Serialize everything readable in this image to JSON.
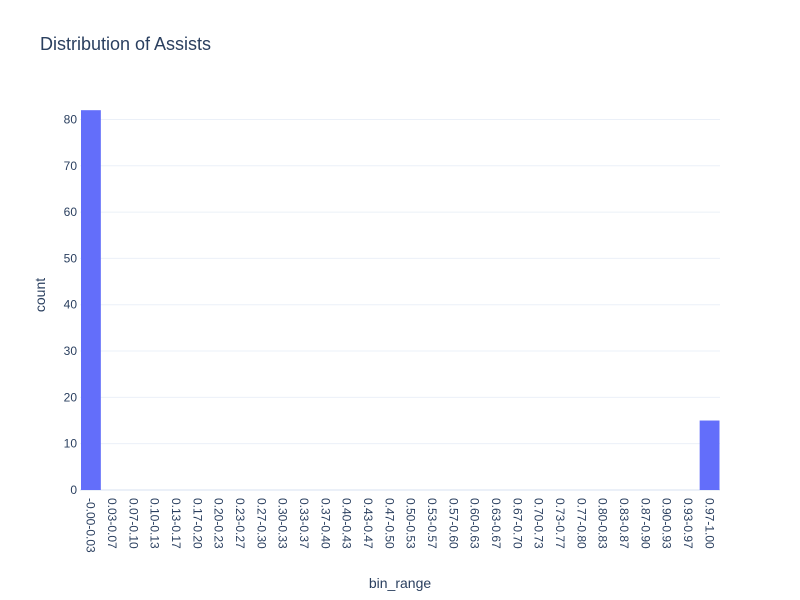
{
  "chart_data": {
    "type": "bar",
    "title": "Distribution of Assists",
    "xlabel": "bin_range",
    "ylabel": "count",
    "categories": [
      "-0.00-0.03",
      "0.03-0.07",
      "0.07-0.10",
      "0.10-0.13",
      "0.13-0.17",
      "0.17-0.20",
      "0.20-0.23",
      "0.23-0.27",
      "0.27-0.30",
      "0.30-0.33",
      "0.33-0.37",
      "0.37-0.40",
      "0.40-0.43",
      "0.43-0.47",
      "0.47-0.50",
      "0.50-0.53",
      "0.53-0.57",
      "0.57-0.60",
      "0.60-0.63",
      "0.63-0.67",
      "0.67-0.70",
      "0.70-0.73",
      "0.73-0.77",
      "0.77-0.80",
      "0.80-0.83",
      "0.83-0.87",
      "0.87-0.90",
      "0.90-0.93",
      "0.93-0.97",
      "0.97-1.00"
    ],
    "values": [
      82,
      0,
      0,
      0,
      0,
      0,
      0,
      0,
      0,
      0,
      0,
      0,
      0,
      0,
      0,
      0,
      0,
      0,
      0,
      0,
      0,
      0,
      0,
      0,
      0,
      0,
      0,
      0,
      0,
      15
    ],
    "ylim": [
      0,
      84.2
    ],
    "yticks": [
      0,
      10,
      20,
      30,
      40,
      50,
      60,
      70,
      80
    ],
    "grid": true,
    "bar_color": "#636efa"
  }
}
